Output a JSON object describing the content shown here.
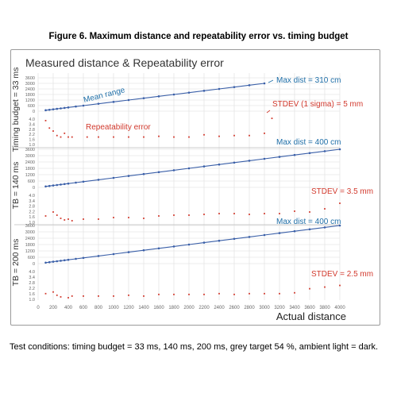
{
  "figure_title": "Figure 6. Maximum distance and repeatability error vs. timing budget",
  "caption": "Test conditions: timing budget = 33 ms, 140 ms, 200 ms, grey target 54 %, ambient light = dark.",
  "colors": {
    "range": "#3a5fa8",
    "error": "#d23a2e",
    "mean_label": "#1f6fa8",
    "grid": "#dddddd",
    "axis_text": "#666666"
  },
  "chart_data": {
    "type": "scatter",
    "title": "Measured distance & Repeatability error",
    "xlabel": "Actual distance",
    "x_ticks": [
      0,
      200,
      400,
      600,
      800,
      1000,
      1200,
      1400,
      1600,
      1800,
      2000,
      2200,
      2400,
      2600,
      2800,
      3000,
      3200,
      3400,
      3600,
      3800,
      4000
    ],
    "xlim": [
      0,
      4000
    ],
    "panels": [
      {
        "ylabel": "Timing budget = 33 ms",
        "range_ticks": [
          "3600",
          "3000",
          "2400",
          "1800",
          "1200",
          "600",
          "0"
        ],
        "range_ylim": [
          0,
          3600
        ],
        "error_ticks": [
          "4.0",
          "3.4",
          "2.8",
          "2.2",
          "1.6",
          "1.0"
        ],
        "error_ylim": [
          0.8,
          4.2
        ],
        "series": [
          {
            "name": "Mean range",
            "x": [
              100,
              150,
              200,
              250,
              300,
              350,
              400,
              500,
              600,
              800,
              1000,
              1200,
              1400,
              1600,
              1800,
              2000,
              2200,
              2400,
              2600,
              2800,
              3000
            ],
            "y": [
              100,
              150,
              200,
              250,
              300,
              350,
              400,
              500,
              600,
              800,
              1000,
              1200,
              1400,
              1600,
              1800,
              2000,
              2200,
              2400,
              2600,
              2800,
              3000
            ]
          },
          {
            "name": "Repeatability error",
            "x": [
              100,
              150,
              200,
              250,
              300,
              350,
              400,
              450,
              650,
              800,
              1000,
              1200,
              1400,
              1600,
              1800,
              2000,
              2200,
              2400,
              2600,
              2800,
              3000,
              3100
            ],
            "y": [
              4.0,
              3.0,
              2.6,
              2.0,
              1.8,
              2.3,
              1.8,
              1.8,
              1.8,
              1.8,
              1.8,
              1.8,
              1.8,
              1.9,
              1.8,
              1.8,
              2.1,
              1.9,
              2.0,
              2.0,
              2.3,
              4.3
            ]
          }
        ],
        "annotations": {
          "mean_label": "Mean range",
          "error_label": "Repeatability error",
          "max_dist": "Max dist = 310 cm",
          "stdev": "STDEV (1 sigma) = 5 mm"
        }
      },
      {
        "ylabel": "TB = 140 ms",
        "range_ticks": [
          "3600",
          "3000",
          "2400",
          "1800",
          "1200",
          "600",
          "0"
        ],
        "range_ylim": [
          0,
          4000
        ],
        "error_ticks": [
          "4.0",
          "3.4",
          "2.8",
          "2.2",
          "1.6",
          "1.0"
        ],
        "error_ylim": [
          0.8,
          4.2
        ],
        "series": [
          {
            "name": "",
            "x": [
              100,
              150,
              200,
              250,
              300,
              350,
              400,
              500,
              600,
              800,
              1000,
              1200,
              1400,
              1600,
              1800,
              2000,
              2200,
              2400,
              2600,
              2800,
              3000,
              3200,
              3400,
              3600,
              3800,
              4000
            ],
            "y": [
              100,
              150,
              200,
              250,
              300,
              350,
              400,
              500,
              600,
              800,
              1000,
              1200,
              1400,
              1600,
              1800,
              2000,
              2200,
              2400,
              2600,
              2800,
              3000,
              3200,
              3400,
              3600,
              3800,
              4000
            ]
          },
          {
            "name": "",
            "x": [
              100,
              200,
              250,
              300,
              350,
              400,
              450,
              600,
              800,
              1000,
              1200,
              1400,
              1600,
              1800,
              2000,
              2200,
              2400,
              2600,
              2800,
              3000,
              3200,
              3400,
              3600,
              3800,
              4000
            ],
            "y": [
              1.6,
              2.1,
              1.7,
              1.3,
              1.1,
              1.2,
              1.0,
              1.2,
              1.2,
              1.4,
              1.4,
              1.3,
              1.6,
              1.7,
              1.7,
              1.8,
              1.9,
              1.9,
              1.8,
              1.9,
              1.9,
              2.2,
              2.1,
              2.5,
              3.2
            ]
          }
        ],
        "annotations": {
          "max_dist": "Max dist = 400 cm",
          "stdev": "STDEV = 3.5 mm"
        }
      },
      {
        "ylabel": "TB = 200 ms",
        "range_ticks": [
          "3600",
          "3000",
          "2400",
          "1800",
          "1200",
          "600",
          "0"
        ],
        "range_ylim": [
          0,
          4000
        ],
        "error_ticks": [
          "4.0",
          "3.4",
          "2.8",
          "2.2",
          "1.6",
          "1.0"
        ],
        "error_ylim": [
          0.8,
          4.2
        ],
        "series": [
          {
            "name": "",
            "x": [
              100,
              150,
              200,
              250,
              300,
              350,
              400,
              500,
              600,
              800,
              1000,
              1200,
              1400,
              1600,
              1800,
              2000,
              2200,
              2400,
              2600,
              2800,
              3000,
              3200,
              3400,
              3600,
              3800,
              4000
            ],
            "y": [
              100,
              150,
              200,
              250,
              300,
              350,
              400,
              500,
              600,
              800,
              1000,
              1200,
              1400,
              1600,
              1800,
              2000,
              2200,
              2400,
              2600,
              2800,
              3000,
              3200,
              3400,
              3600,
              3800,
              4000
            ]
          },
          {
            "name": "",
            "x": [
              100,
              200,
              250,
              300,
              400,
              450,
              600,
              800,
              1000,
              1200,
              1400,
              1600,
              1800,
              2000,
              2200,
              2400,
              2600,
              2800,
              3000,
              3200,
              3400,
              3600,
              3800,
              4000
            ],
            "y": [
              1.5,
              1.7,
              1.3,
              1.1,
              1.0,
              1.2,
              1.2,
              1.2,
              1.2,
              1.3,
              1.2,
              1.4,
              1.4,
              1.4,
              1.4,
              1.5,
              1.4,
              1.5,
              1.5,
              1.5,
              1.6,
              2.1,
              2.3,
              2.5
            ]
          }
        ],
        "annotations": {
          "max_dist": "Max dist = 400 cm",
          "stdev": "STDEV =  2.5 mm"
        }
      }
    ]
  }
}
